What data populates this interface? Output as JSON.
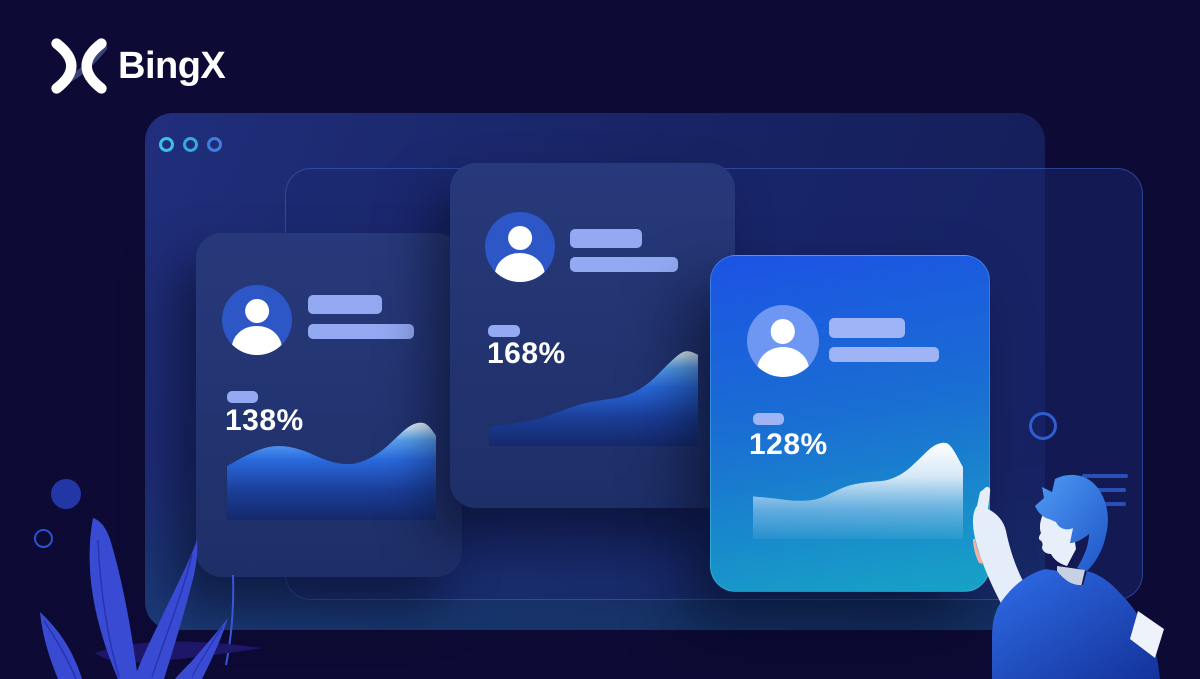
{
  "brand": {
    "name": "BingX"
  },
  "window": {
    "traffic_dots": [
      "dot-teal",
      "dot-cyan",
      "dot-blue"
    ]
  },
  "cards": [
    {
      "id": "trader-card-1",
      "percent": "138%",
      "chart_points": [
        [
          0,
          45
        ],
        [
          12,
          30
        ],
        [
          24,
          23
        ],
        [
          36,
          28
        ],
        [
          48,
          40
        ],
        [
          58,
          44
        ],
        [
          66,
          40
        ],
        [
          74,
          30
        ],
        [
          81,
          16
        ],
        [
          87,
          4
        ],
        [
          92,
          0
        ],
        [
          96,
          2
        ],
        [
          100,
          14
        ]
      ]
    },
    {
      "id": "trader-card-2",
      "percent": "168%",
      "chart_points": [
        [
          0,
          80
        ],
        [
          12,
          77
        ],
        [
          24,
          72
        ],
        [
          34,
          64
        ],
        [
          44,
          56
        ],
        [
          54,
          52
        ],
        [
          62,
          50
        ],
        [
          70,
          44
        ],
        [
          78,
          32
        ],
        [
          85,
          16
        ],
        [
          91,
          4
        ],
        [
          95,
          0
        ],
        [
          100,
          5
        ]
      ]
    },
    {
      "id": "trader-card-3",
      "percent": "128%",
      "chart_points": [
        [
          0,
          56
        ],
        [
          10,
          58
        ],
        [
          20,
          61
        ],
        [
          30,
          60
        ],
        [
          38,
          52
        ],
        [
          46,
          44
        ],
        [
          56,
          41
        ],
        [
          64,
          40
        ],
        [
          72,
          32
        ],
        [
          79,
          18
        ],
        [
          85,
          5
        ],
        [
          90,
          0
        ],
        [
          94,
          2
        ],
        [
          100,
          26
        ]
      ]
    }
  ],
  "icons": [
    "bingx-logo-mark",
    "user-avatar-icon",
    "window-dot-icon",
    "sparkline-chart",
    "plant-illustration",
    "person-pointing-illustration"
  ],
  "colors": {
    "page_bg": "#0d0a35",
    "window_top": "#202f7c",
    "window_bottom": "#131c55",
    "panel_border": "#4064c8",
    "card_fill": "#243671",
    "card3_top": "#1c53e4",
    "card3_bottom": "#17a3c6",
    "placeholder_bar": "#93a9f2",
    "dot_teal": "#3cc0ea",
    "leaf_blue": "#3a4bd3",
    "text_white": "#ffffff"
  }
}
